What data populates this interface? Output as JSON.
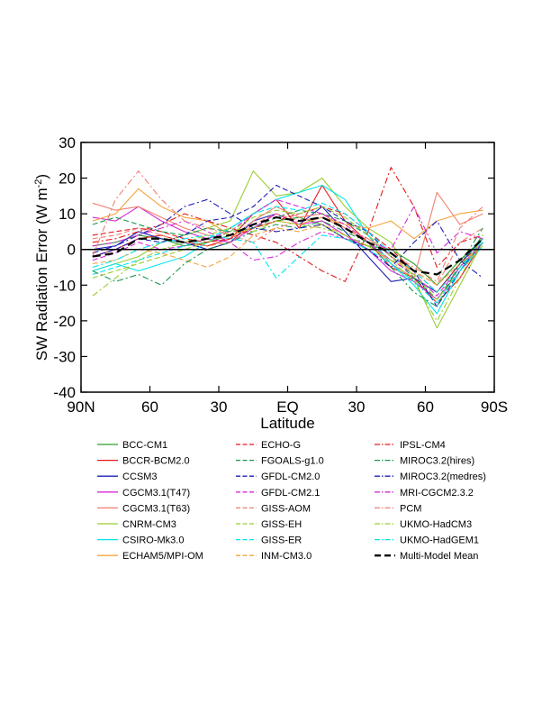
{
  "chart_data": {
    "type": "line",
    "xlabel": "Latitude",
    "ylabel": "SW Radiation Error (W m",
    "ylabel_exponent": "-2",
    "ylabel_suffix": ")",
    "xlim": [
      90,
      -90
    ],
    "ylim": [
      -40,
      30
    ],
    "x_ticks": [
      90,
      60,
      30,
      0,
      -30,
      -60,
      -90
    ],
    "x_tick_labels": [
      "90N",
      "60",
      "30",
      "EQ",
      "30",
      "60",
      "90S"
    ],
    "y_ticks": [
      -40,
      -30,
      -20,
      -10,
      0,
      10,
      20,
      30
    ],
    "y_tick_labels": [
      "-40",
      "-30",
      "-20",
      "-10",
      "0",
      "10",
      "20",
      "30"
    ],
    "zero_line": true,
    "grid": false,
    "legend_position": "bottom",
    "x": [
      85,
      75,
      65,
      55,
      45,
      35,
      25,
      15,
      5,
      -5,
      -15,
      -25,
      -35,
      -45,
      -55,
      -65,
      -75,
      -85
    ],
    "series": [
      {
        "name": "BCC-CM1",
        "color": "#2ca02c",
        "dash": "solid",
        "values": [
          1,
          2,
          4,
          3,
          1,
          2,
          4,
          6,
          8,
          9,
          7,
          3,
          1,
          0,
          -4,
          -10,
          -3,
          3
        ]
      },
      {
        "name": "BCCR-BCM2.0",
        "color": "#e31a1c",
        "dash": "solid",
        "values": [
          -2,
          0,
          3,
          4,
          2,
          1,
          3,
          10,
          14,
          6,
          18,
          8,
          2,
          -5,
          -8,
          -15,
          -8,
          2
        ]
      },
      {
        "name": "CCSM3",
        "color": "#1f1fb4",
        "dash": "solid",
        "values": [
          0,
          1,
          5,
          3,
          2,
          0,
          2,
          8,
          10,
          7,
          12,
          5,
          -2,
          -9,
          -8,
          -12,
          -4,
          3
        ]
      },
      {
        "name": "CGCM3.1(T47)",
        "color": "#d62bd6",
        "dash": "solid",
        "values": [
          9,
          8,
          12,
          8,
          5,
          3,
          2,
          6,
          10,
          7,
          8,
          4,
          0,
          -6,
          -9,
          -14,
          -6,
          2
        ]
      },
      {
        "name": "CGCM3.1(T63)",
        "color": "#f08070",
        "dash": "solid",
        "values": [
          13,
          11,
          12,
          9,
          6,
          4,
          3,
          8,
          12,
          9,
          10,
          6,
          2,
          -4,
          -8,
          16,
          7,
          10
        ]
      },
      {
        "name": "CNRM-CM3",
        "color": "#9acd32",
        "dash": "solid",
        "values": [
          -6,
          -4,
          -2,
          2,
          4,
          6,
          8,
          22,
          15,
          16,
          20,
          12,
          6,
          2,
          -8,
          -22,
          -10,
          2
        ]
      },
      {
        "name": "CSIRO-Mk3.0",
        "color": "#00e5ee",
        "dash": "solid",
        "values": [
          -6,
          -4,
          -6,
          -4,
          -2,
          2,
          6,
          10,
          14,
          16,
          18,
          14,
          4,
          -4,
          -10,
          -18,
          -6,
          3
        ]
      },
      {
        "name": "ECHAM5/MPI-OM",
        "color": "#f4a43c",
        "dash": "solid",
        "values": [
          8,
          10,
          17,
          12,
          9,
          8,
          4,
          6,
          8,
          7,
          9,
          7,
          6,
          8,
          3,
          8,
          10,
          11
        ]
      },
      {
        "name": "ECHO-G",
        "color": "#e31a1c",
        "dash": "dash",
        "values": [
          4,
          5,
          6,
          5,
          3,
          2,
          3,
          6,
          8,
          10,
          12,
          10,
          5,
          0,
          -6,
          -12,
          -4,
          2
        ]
      },
      {
        "name": "FGOALS-g1.0",
        "color": "#1a9850",
        "dash": "dash",
        "values": [
          7,
          9,
          7,
          5,
          4,
          6,
          5,
          6,
          9,
          11,
          10,
          8,
          4,
          -2,
          -8,
          -14,
          -5,
          4
        ]
      },
      {
        "name": "GFDL-CM2.0",
        "color": "#1f1fb4",
        "dash": "dash",
        "values": [
          -2,
          0,
          3,
          2,
          4,
          8,
          9,
          12,
          18,
          15,
          12,
          8,
          5,
          -2,
          -6,
          -16,
          -6,
          2
        ]
      },
      {
        "name": "GFDL-CM2.1",
        "color": "#d62bd6",
        "dash": "dash",
        "values": [
          -3,
          -1,
          2,
          0,
          1,
          3,
          5,
          10,
          14,
          12,
          10,
          7,
          2,
          -3,
          -7,
          -13,
          -5,
          2
        ]
      },
      {
        "name": "GISS-AOM",
        "color": "#f08070",
        "dash": "dash",
        "values": [
          3,
          4,
          6,
          4,
          2,
          1,
          2,
          7,
          10,
          8,
          9,
          6,
          3,
          -2,
          -6,
          -10,
          2,
          6
        ]
      },
      {
        "name": "GISS-EH",
        "color": "#9acd32",
        "dash": "dash",
        "values": [
          -8,
          -6,
          -4,
          -2,
          0,
          2,
          5,
          9,
          11,
          10,
          12,
          9,
          4,
          -2,
          -7,
          -14,
          -6,
          1
        ]
      },
      {
        "name": "GISS-ER",
        "color": "#00e5ee",
        "dash": "dash",
        "values": [
          -7,
          -5,
          -3,
          -1,
          1,
          3,
          6,
          10,
          12,
          11,
          13,
          10,
          5,
          -1,
          -6,
          -12,
          -5,
          2
        ]
      },
      {
        "name": "INM-CM3.0",
        "color": "#f4a43c",
        "dash": "dash",
        "values": [
          -4,
          -3,
          0,
          -1,
          -3,
          -5,
          -2,
          4,
          6,
          5,
          7,
          4,
          1,
          -3,
          -6,
          -10,
          -4,
          1
        ]
      },
      {
        "name": "IPSL-CM4",
        "color": "#e31a1c",
        "dash": "dashdot",
        "values": [
          2,
          3,
          5,
          7,
          10,
          8,
          6,
          4,
          2,
          -2,
          -6,
          -9,
          5,
          23,
          12,
          -5,
          2,
          4
        ]
      },
      {
        "name": "MIROC3.2(hires)",
        "color": "#1a9850",
        "dash": "dashdot",
        "values": [
          -6,
          -9,
          -7,
          -10,
          -4,
          0,
          2,
          5,
          7,
          6,
          8,
          5,
          2,
          -5,
          -12,
          -16,
          -4,
          6
        ]
      },
      {
        "name": "MIROC3.2(medres)",
        "color": "#1f1fb4",
        "dash": "dashdot",
        "values": [
          -1,
          1,
          4,
          7,
          12,
          14,
          10,
          6,
          5,
          6,
          7,
          3,
          0,
          -5,
          2,
          8,
          -3,
          -8
        ]
      },
      {
        "name": "MRI-CGCM2.3.2",
        "color": "#d62bd6",
        "dash": "dashdot",
        "values": [
          1,
          2,
          4,
          6,
          8,
          5,
          2,
          -3,
          -2,
          2,
          5,
          3,
          2,
          0,
          12,
          -1,
          5,
          3
        ]
      },
      {
        "name": "PCM",
        "color": "#f08070",
        "dash": "dashdot",
        "values": [
          -2,
          14,
          22,
          14,
          8,
          6,
          4,
          2,
          6,
          8,
          9,
          6,
          3,
          -1,
          -5,
          -9,
          6,
          12
        ]
      },
      {
        "name": "UKMO-HadCM3",
        "color": "#9acd32",
        "dash": "dashdot",
        "values": [
          -13,
          -8,
          -3,
          0,
          2,
          4,
          6,
          5,
          8,
          7,
          6,
          4,
          1,
          -3,
          -9,
          -20,
          -8,
          4
        ]
      },
      {
        "name": "UKMO-HadGEM1",
        "color": "#00e5ee",
        "dash": "dashdot",
        "values": [
          -5,
          -3,
          0,
          2,
          3,
          4,
          3,
          2,
          -8,
          -2,
          4,
          3,
          0,
          -4,
          -9,
          -15,
          -6,
          1
        ]
      },
      {
        "name": "Multi-Model Mean",
        "color": "#000000",
        "dash": "bold-dash",
        "values": [
          -2,
          -1,
          3,
          3,
          2,
          3,
          4,
          7,
          9,
          8,
          9,
          6,
          2,
          -1,
          -6,
          -7,
          -3,
          3
        ]
      }
    ]
  }
}
